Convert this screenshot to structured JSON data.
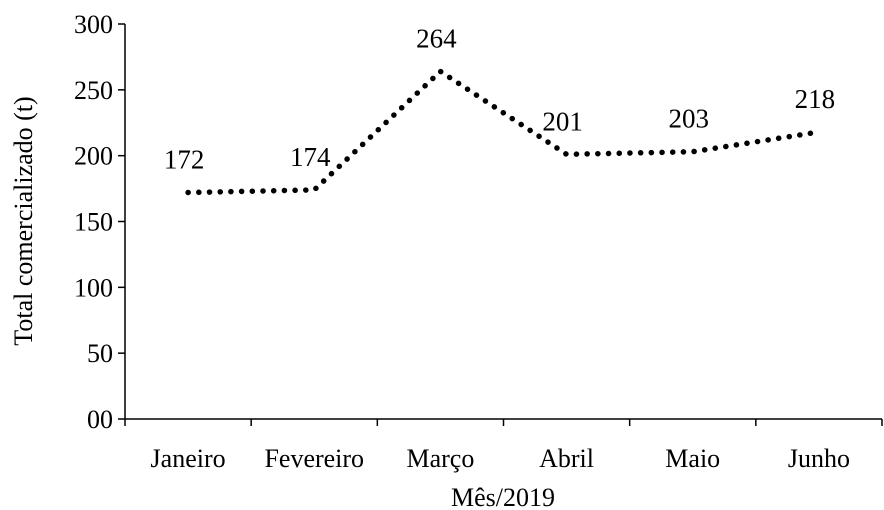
{
  "chart_data": {
    "type": "line",
    "categories": [
      "Janeiro",
      "Fevereiro",
      "Março",
      "Abril",
      "Maio",
      "Junho"
    ],
    "series": [
      {
        "values": [
          172,
          174,
          264,
          201,
          203,
          218
        ]
      }
    ],
    "data_labels": [
      "172",
      "174",
      "264",
      "201",
      "203",
      "218"
    ],
    "ylim": [
      0,
      300
    ],
    "yticks": [
      0,
      50,
      100,
      150,
      200,
      250,
      300
    ],
    "ytick_labels": [
      "00",
      "50",
      "100",
      "150",
      "200",
      "250",
      "300"
    ],
    "xlabel": "Mês/2019",
    "ylabel": "Total comercializado (t)",
    "line_style": "dotted",
    "line_color": "#000000",
    "grid": false,
    "legend": "none"
  }
}
